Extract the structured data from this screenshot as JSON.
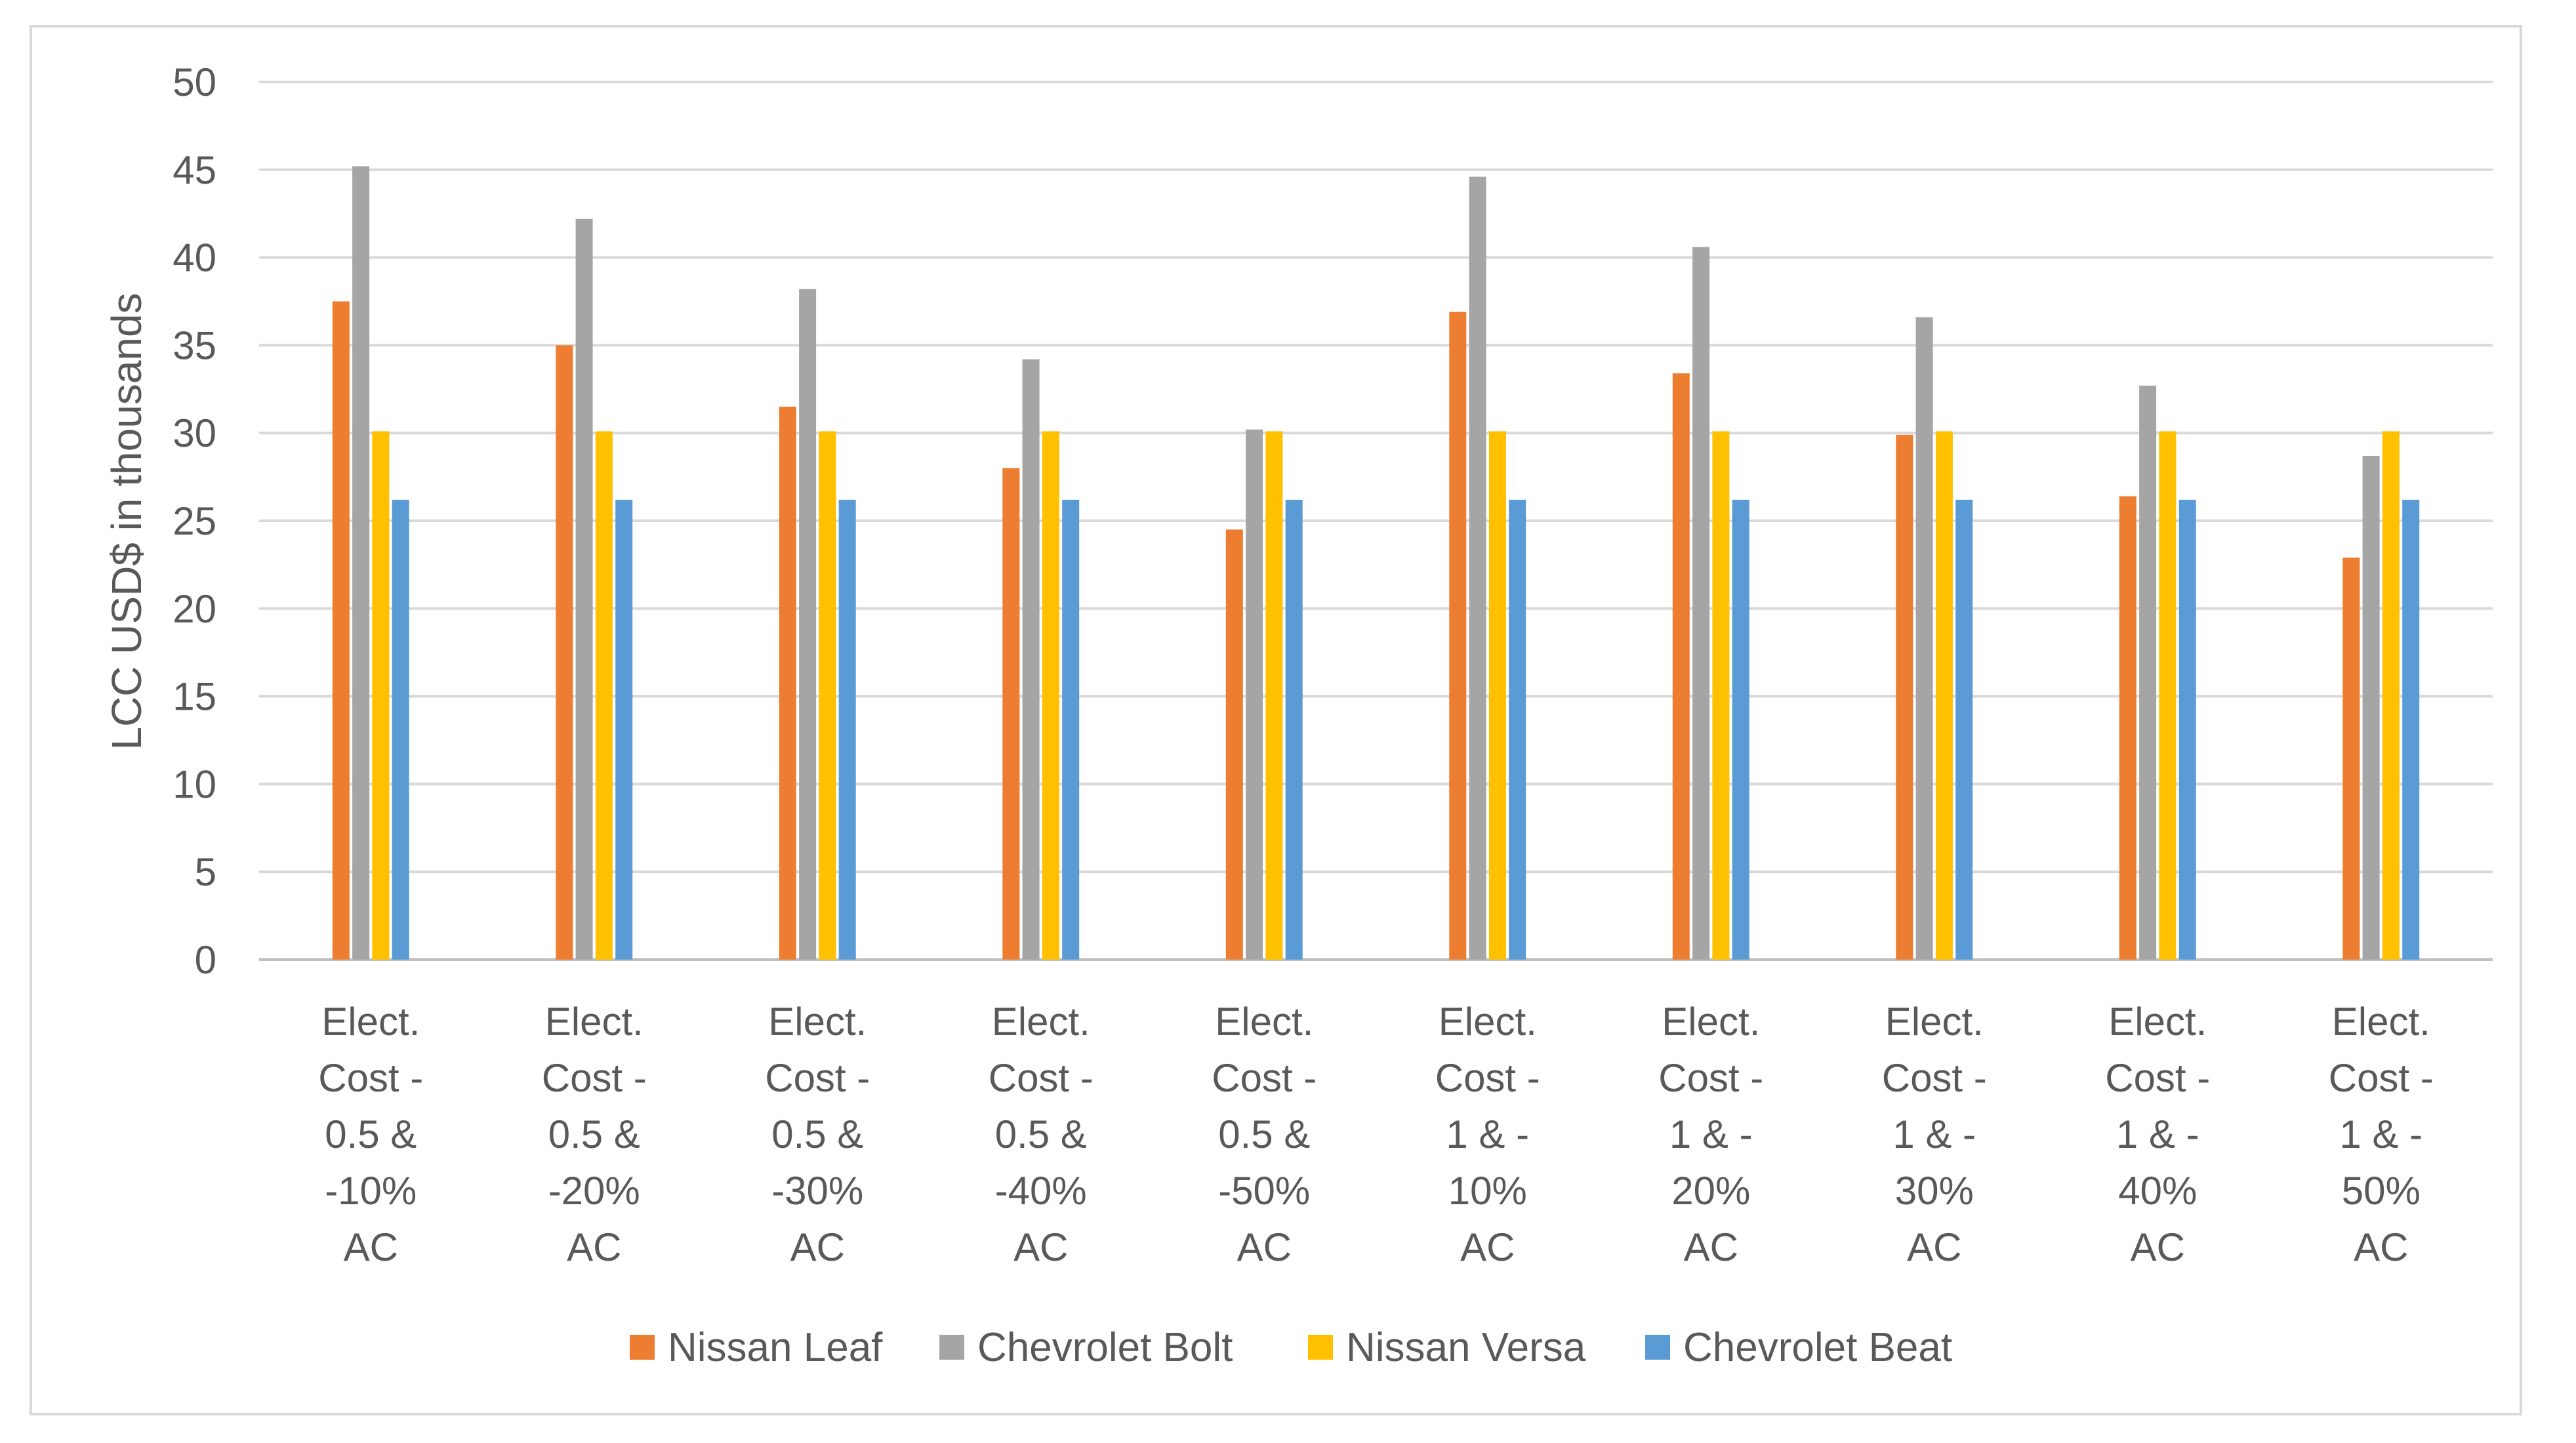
{
  "chart_data": {
    "type": "bar",
    "title": "",
    "xlabel": "",
    "ylabel": "LCC USD$ in thousands",
    "ylim": [
      0,
      50
    ],
    "yticks": [
      0,
      5,
      10,
      15,
      20,
      25,
      30,
      35,
      40,
      45,
      50
    ],
    "grid": true,
    "legend_position": "bottom",
    "categories": [
      [
        "Elect.",
        "Cost -",
        "0.5 &",
        "-10%",
        "AC"
      ],
      [
        "Elect.",
        "Cost -",
        "0.5 &",
        "-20%",
        "AC"
      ],
      [
        "Elect.",
        "Cost -",
        "0.5 &",
        "-30%",
        "AC"
      ],
      [
        "Elect.",
        "Cost -",
        "0.5 &",
        "-40%",
        "AC"
      ],
      [
        "Elect.",
        "Cost -",
        "0.5 &",
        "-50%",
        "AC"
      ],
      [
        "Elect.",
        "Cost -",
        "1 & -",
        "10%",
        "AC"
      ],
      [
        "Elect.",
        "Cost -",
        "1 & -",
        "20%",
        "AC"
      ],
      [
        "Elect.",
        "Cost -",
        "1 & -",
        "30%",
        "AC"
      ],
      [
        "Elect.",
        "Cost -",
        "1 & -",
        "40%",
        "AC"
      ],
      [
        "Elect.",
        "Cost -",
        "1 & -",
        "50%",
        "AC"
      ]
    ],
    "series": [
      {
        "name": "Nissan Leaf",
        "color": "#ed7d31",
        "values": [
          37.5,
          35.0,
          31.5,
          28.0,
          24.5,
          36.9,
          33.4,
          29.9,
          26.4,
          22.9
        ]
      },
      {
        "name": "Chevrolet Bolt",
        "color": "#a5a5a5",
        "values": [
          45.2,
          42.2,
          38.2,
          34.2,
          30.2,
          44.6,
          40.6,
          36.6,
          32.7,
          28.7
        ]
      },
      {
        "name": "Nissan Versa",
        "color": "#ffc000",
        "values": [
          30.1,
          30.1,
          30.1,
          30.1,
          30.1,
          30.1,
          30.1,
          30.1,
          30.1,
          30.1
        ]
      },
      {
        "name": "Chevrolet Beat",
        "color": "#5b9bd5",
        "values": [
          26.2,
          26.2,
          26.2,
          26.2,
          26.2,
          26.2,
          26.2,
          26.2,
          26.2,
          26.2
        ]
      }
    ]
  }
}
